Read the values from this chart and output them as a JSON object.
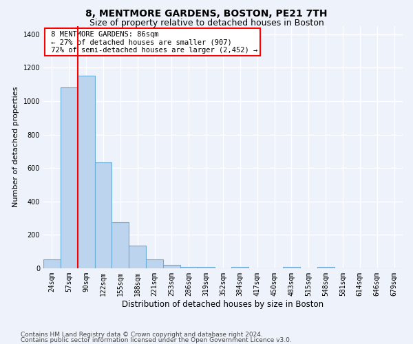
{
  "title1": "8, MENTMORE GARDENS, BOSTON, PE21 7TH",
  "title2": "Size of property relative to detached houses in Boston",
  "xlabel": "Distribution of detached houses by size in Boston",
  "ylabel": "Number of detached properties",
  "bar_labels": [
    "24sqm",
    "57sqm",
    "90sqm",
    "122sqm",
    "155sqm",
    "188sqm",
    "221sqm",
    "253sqm",
    "286sqm",
    "319sqm",
    "352sqm",
    "384sqm",
    "417sqm",
    "450sqm",
    "483sqm",
    "515sqm",
    "548sqm",
    "581sqm",
    "614sqm",
    "646sqm",
    "679sqm"
  ],
  "bar_values": [
    55,
    1080,
    1150,
    635,
    275,
    135,
    55,
    20,
    10,
    10,
    0,
    10,
    0,
    0,
    10,
    0,
    10,
    0,
    0,
    0,
    0
  ],
  "bar_color": "#bcd4ee",
  "bar_edge_color": "#6aacd5",
  "vline_position": 1.5,
  "vline_color": "red",
  "property_label": "8 MENTMORE GARDENS: 86sqm",
  "smaller_pct": 27,
  "smaller_count": 907,
  "larger_pct": 72,
  "larger_count": 2452,
  "ylim": [
    0,
    1450
  ],
  "yticks": [
    0,
    200,
    400,
    600,
    800,
    1000,
    1200,
    1400
  ],
  "footnote1": "Contains HM Land Registry data © Crown copyright and database right 2024.",
  "footnote2": "Contains public sector information licensed under the Open Government Licence v3.0.",
  "background_color": "#eef2fa",
  "grid_color": "#ffffff",
  "title1_fontsize": 10,
  "title2_fontsize": 9,
  "xlabel_fontsize": 8.5,
  "ylabel_fontsize": 8,
  "tick_fontsize": 7,
  "annotation_fontsize": 7.5,
  "footnote_fontsize": 6.5
}
